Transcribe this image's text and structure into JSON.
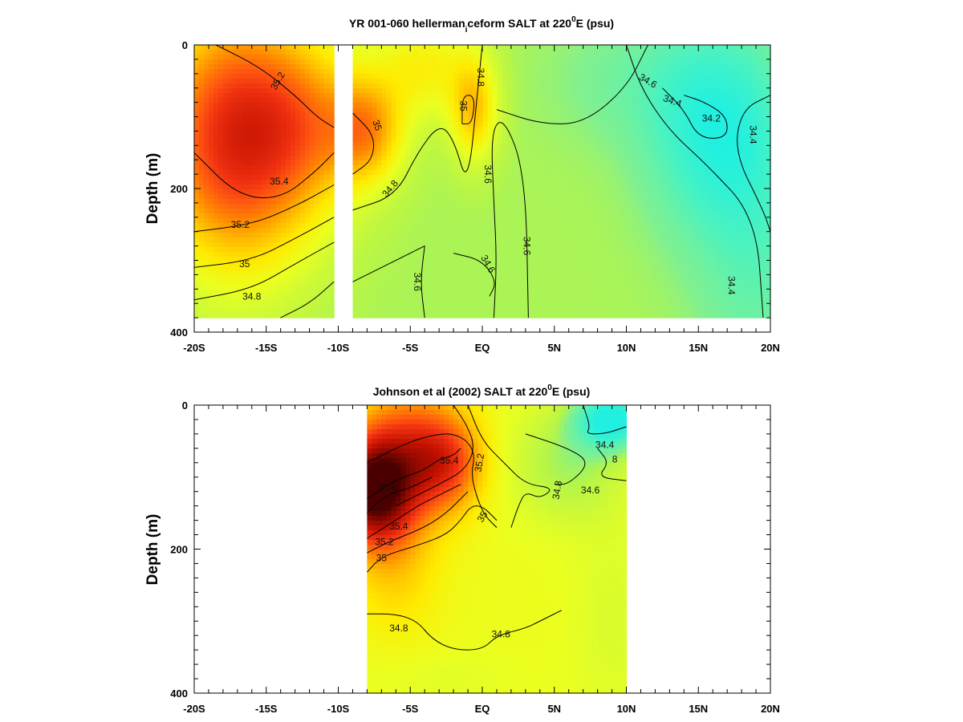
{
  "chart_data": [
    {
      "type": "heatmap",
      "title_main": "YR 001-060 hellerman",
      "title_sub": "i",
      "title_rest": "ceform SALT at 220",
      "title_sup": "0",
      "title_end": "E (psu)",
      "ylabel": "Depth (m)",
      "xlabel": "",
      "xlim": [
        -20,
        20
      ],
      "ylim": [
        400,
        0
      ],
      "x_ticks": [
        -20,
        -15,
        -10,
        -5,
        0,
        5,
        10,
        15,
        20
      ],
      "x_tick_labels": [
        "-20S",
        "-15S",
        "-10S",
        "-5S",
        "EQ",
        "5N",
        "10N",
        "15N",
        "20N"
      ],
      "y_ticks": [
        0,
        200,
        400
      ],
      "y_tick_labels": [
        "0",
        "200",
        "400"
      ],
      "data_x_range": [
        [
          -20,
          -10.3
        ],
        [
          -9.0,
          20
        ]
      ],
      "data_y_max": 380,
      "colorscale": [
        [
          34.1,
          "#21f0e0"
        ],
        [
          34.3,
          "#4af2c0"
        ],
        [
          34.5,
          "#80f090"
        ],
        [
          34.6,
          "#b5f548"
        ],
        [
          34.8,
          "#eaff20"
        ],
        [
          34.95,
          "#ffea00"
        ],
        [
          35.1,
          "#ffbe00"
        ],
        [
          35.25,
          "#ff8a00"
        ],
        [
          35.4,
          "#ff5a10"
        ],
        [
          35.55,
          "#f03010"
        ],
        [
          35.8,
          "#c01000"
        ],
        [
          36.2,
          "#4a0000"
        ]
      ],
      "base_salinity": 34.58,
      "blobs": [
        {
          "x": -17,
          "y": 130,
          "sx": 5.5,
          "sy": 170,
          "amp": 1.05
        },
        {
          "x": -12,
          "y": 110,
          "sx": 4,
          "sy": 110,
          "amp": 0.35
        },
        {
          "x": -8,
          "y": 120,
          "sx": 2.5,
          "sy": 70,
          "amp": 0.55
        },
        {
          "x": -4,
          "y": 30,
          "sx": 3.5,
          "sy": 70,
          "amp": 0.32
        },
        {
          "x": -0.6,
          "y": 90,
          "sx": 1.6,
          "sy": 70,
          "amp": 0.48
        },
        {
          "x": 16,
          "y": 120,
          "sx": 4.5,
          "sy": 140,
          "amp": -0.38
        },
        {
          "x": 19,
          "y": 260,
          "sx": 4,
          "sy": 220,
          "amp": -0.2
        },
        {
          "x": 11,
          "y": 50,
          "sx": 6,
          "sy": 90,
          "amp": -0.12
        }
      ],
      "contour_labels": [
        {
          "x": -14.2,
          "y": 50,
          "text": "35.2",
          "rot": -60
        },
        {
          "x": -14.1,
          "y": 190,
          "text": "35.4",
          "rot": 0
        },
        {
          "x": -16.8,
          "y": 250,
          "text": "35.2",
          "rot": 0
        },
        {
          "x": -16.5,
          "y": 305,
          "text": "35",
          "rot": 0
        },
        {
          "x": -16.0,
          "y": 350,
          "text": "34.8",
          "rot": 0
        },
        {
          "x": -7.3,
          "y": 112,
          "text": "35",
          "rot": 70
        },
        {
          "x": -6.4,
          "y": 200,
          "text": "34.8",
          "rot": -50
        },
        {
          "x": -0.1,
          "y": 45,
          "text": "34.8",
          "rot": 90
        },
        {
          "x": -1.3,
          "y": 85,
          "text": "35",
          "rot": 90
        },
        {
          "x": 0.4,
          "y": 180,
          "text": "34.6",
          "rot": 90
        },
        {
          "x": 3.1,
          "y": 280,
          "text": "34.6",
          "rot": 90
        },
        {
          "x": 0.4,
          "y": 305,
          "text": "34.6",
          "rot": 60
        },
        {
          "x": -4.5,
          "y": 330,
          "text": "34.6",
          "rot": 90
        },
        {
          "x": 11.5,
          "y": 50,
          "text": "34.6",
          "rot": 30
        },
        {
          "x": 13.2,
          "y": 78,
          "text": "34.4",
          "rot": 20
        },
        {
          "x": 15.9,
          "y": 102,
          "text": "34.2",
          "rot": 0
        },
        {
          "x": 18.8,
          "y": 125,
          "text": "34.4",
          "rot": 90
        },
        {
          "x": 17.3,
          "y": 335,
          "text": "34.4",
          "rot": 90
        }
      ],
      "contours": [
        [
          [
            -18.5,
            0
          ],
          [
            -15.5,
            30
          ],
          [
            -13,
            70
          ],
          [
            -11.5,
            100
          ],
          [
            -10.3,
            115
          ]
        ],
        [
          [
            -20,
            150
          ],
          [
            -17,
            210
          ],
          [
            -14,
            215
          ],
          [
            -11.5,
            175
          ],
          [
            -10.3,
            150
          ]
        ],
        [
          [
            -20,
            260
          ],
          [
            -16,
            250
          ],
          [
            -13,
            225
          ],
          [
            -10.3,
            195
          ]
        ],
        [
          [
            -20,
            310
          ],
          [
            -16,
            300
          ],
          [
            -13,
            270
          ],
          [
            -10.3,
            240
          ]
        ],
        [
          [
            -20,
            355
          ],
          [
            -16,
            340
          ],
          [
            -13,
            305
          ],
          [
            -10.3,
            275
          ]
        ],
        [
          [
            -14,
            380
          ],
          [
            -12,
            360
          ],
          [
            -10.3,
            330
          ]
        ],
        [
          [
            -9,
            95
          ],
          [
            -7.5,
            125
          ],
          [
            -7.6,
            160
          ],
          [
            -9,
            180
          ]
        ],
        [
          [
            -9,
            230
          ],
          [
            -6,
            210
          ],
          [
            -4.5,
            150
          ],
          [
            -3,
            110
          ],
          [
            -2,
            130
          ],
          [
            -1,
            200
          ],
          [
            -0.3,
            60
          ],
          [
            0,
            0
          ]
        ],
        [
          [
            -1.4,
            110
          ],
          [
            -0.7,
            110
          ],
          [
            -0.5,
            70
          ],
          [
            -1.4,
            70
          ],
          [
            -1.4,
            110
          ]
        ],
        [
          [
            -9,
            330
          ],
          [
            -6,
            300
          ],
          [
            -4,
            280
          ]
        ],
        [
          [
            -4,
            380
          ],
          [
            -4.3,
            330
          ],
          [
            -4,
            280
          ]
        ],
        [
          [
            -2,
            290
          ],
          [
            0,
            300
          ],
          [
            1,
            330
          ],
          [
            0.5,
            350
          ]
        ],
        [
          [
            0.8,
            380
          ],
          [
            1,
            300
          ],
          [
            0.8,
            220
          ],
          [
            0.6,
            120
          ],
          [
            1.5,
            100
          ],
          [
            3,
            180
          ],
          [
            3.2,
            380
          ]
        ],
        [
          [
            1,
            90
          ],
          [
            4,
            110
          ],
          [
            7,
            110
          ],
          [
            10,
            60
          ],
          [
            11.5,
            0
          ]
        ],
        [
          [
            10,
            0
          ],
          [
            11,
            60
          ],
          [
            13,
            120
          ],
          [
            15.5,
            165
          ],
          [
            19,
            240
          ],
          [
            19.5,
            380
          ]
        ],
        [
          [
            12.5,
            60
          ],
          [
            14,
            90
          ],
          [
            15,
            130
          ],
          [
            17,
            130
          ],
          [
            17,
            100
          ],
          [
            15.5,
            80
          ],
          [
            14,
            70
          ]
        ],
        [
          [
            20,
            70
          ],
          [
            18,
            90
          ],
          [
            17.5,
            150
          ],
          [
            19.5,
            230
          ],
          [
            20,
            260
          ]
        ]
      ]
    },
    {
      "type": "heatmap",
      "title_main": "Johnson et al (2002) SALT at 220",
      "title_sup": "0",
      "title_end": "E (psu)",
      "ylabel": "Depth (m)",
      "xlabel": "",
      "xlim": [
        -20,
        20
      ],
      "ylim": [
        400,
        0
      ],
      "x_ticks": [
        -20,
        -15,
        -10,
        -5,
        0,
        5,
        10,
        15,
        20
      ],
      "x_tick_labels": [
        "-20S",
        "-15S",
        "-10S",
        "-5S",
        "EQ",
        "5N",
        "10N",
        "15N",
        "20N"
      ],
      "y_ticks": [
        0,
        200,
        400
      ],
      "y_tick_labels": [
        "0",
        "200",
        "400"
      ],
      "data_x_range": [
        [
          -8,
          10
        ]
      ],
      "data_y_max": 400,
      "colorscale": [
        [
          34.1,
          "#21f0e0"
        ],
        [
          34.3,
          "#4af2c0"
        ],
        [
          34.5,
          "#80f090"
        ],
        [
          34.6,
          "#b5f548"
        ],
        [
          34.8,
          "#eaff20"
        ],
        [
          34.95,
          "#ffea00"
        ],
        [
          35.1,
          "#ffbe00"
        ],
        [
          35.25,
          "#ff8a00"
        ],
        [
          35.4,
          "#ff5a10"
        ],
        [
          35.55,
          "#f03010"
        ],
        [
          35.8,
          "#c01000"
        ],
        [
          36.2,
          "#4a0000"
        ]
      ],
      "base_salinity": 34.82,
      "blobs": [
        {
          "x": -7.5,
          "y": 120,
          "sx": 2.5,
          "sy": 70,
          "amp": 1.3
        },
        {
          "x": -5,
          "y": 70,
          "sx": 3.5,
          "sy": 90,
          "amp": 0.65
        },
        {
          "x": -2.5,
          "y": 80,
          "sx": 2.5,
          "sy": 60,
          "amp": 0.5
        },
        {
          "x": -6,
          "y": 230,
          "sx": 3,
          "sy": 90,
          "amp": 0.2
        },
        {
          "x": 9,
          "y": 20,
          "sx": 2.5,
          "sy": 40,
          "amp": -0.75
        },
        {
          "x": 6,
          "y": 80,
          "sx": 4,
          "sy": 80,
          "amp": -0.25
        },
        {
          "x": 9,
          "y": 300,
          "sx": 3,
          "sy": 150,
          "amp": -0.08
        },
        {
          "x": -3,
          "y": 380,
          "sx": 6,
          "sy": 40,
          "amp": -0.05
        }
      ],
      "contour_labels": [
        {
          "x": 8.5,
          "y": 55,
          "text": "34.4",
          "rot": 0
        },
        {
          "x": 9.2,
          "y": 75,
          "text": "8",
          "rot": 0
        },
        {
          "x": -2.3,
          "y": 77,
          "text": "35.4",
          "rot": 0
        },
        {
          "x": -0.2,
          "y": 80,
          "text": "35.2",
          "rot": -80
        },
        {
          "x": 5.2,
          "y": 118,
          "text": "34.8",
          "rot": -80
        },
        {
          "x": 7.5,
          "y": 118,
          "text": "34.6",
          "rot": 0
        },
        {
          "x": -6.6,
          "y": 115,
          "text": "35.6",
          "rot": 0
        },
        {
          "x": 0,
          "y": 155,
          "text": "35",
          "rot": -60
        },
        {
          "x": -5.8,
          "y": 168,
          "text": "35.4",
          "rot": 0
        },
        {
          "x": -6.8,
          "y": 190,
          "text": "35.2",
          "rot": 0
        },
        {
          "x": -7,
          "y": 212,
          "text": "35",
          "rot": 0
        },
        {
          "x": -5.8,
          "y": 310,
          "text": "34.8",
          "rot": 0
        },
        {
          "x": 1.3,
          "y": 318,
          "text": "34.8",
          "rot": 0
        }
      ],
      "contours": [
        [
          [
            7,
            0
          ],
          [
            7.5,
            30
          ],
          [
            7.2,
            40
          ],
          [
            8.5,
            40
          ],
          [
            10,
            30
          ]
        ],
        [
          [
            8,
            60
          ],
          [
            8.8,
            80
          ],
          [
            8,
            100
          ],
          [
            10,
            105
          ]
        ],
        [
          [
            3,
            40
          ],
          [
            6,
            60
          ],
          [
            7.5,
            80
          ],
          [
            6,
            110
          ],
          [
            5,
            110
          ]
        ],
        [
          [
            -1,
            0
          ],
          [
            0,
            50
          ],
          [
            1.5,
            80
          ],
          [
            3,
            110
          ],
          [
            5,
            115
          ],
          [
            4,
            130
          ],
          [
            3,
            120
          ],
          [
            2.5,
            140
          ],
          [
            2,
            170
          ]
        ],
        [
          [
            -8,
            80
          ],
          [
            -5,
            50
          ],
          [
            -3,
            40
          ],
          [
            -2,
            40
          ],
          [
            -1,
            50
          ],
          [
            -0.5,
            70
          ],
          [
            -0.8,
            100
          ],
          [
            0,
            150
          ],
          [
            1,
            170
          ]
        ],
        [
          [
            -6,
            140
          ],
          [
            -4,
            120
          ],
          [
            -3,
            110
          ],
          [
            -1.2,
            90
          ],
          [
            -0.5,
            60
          ],
          [
            -1,
            30
          ],
          [
            -2,
            0
          ]
        ],
        [
          [
            -8,
            130
          ],
          [
            -6.5,
            110
          ],
          [
            -5.5,
            100
          ],
          [
            -4,
            90
          ],
          [
            -3,
            75
          ],
          [
            -2,
            70
          ],
          [
            -1.5,
            60
          ]
        ],
        [
          [
            -8,
            150
          ],
          [
            -7,
            130
          ],
          [
            -6,
            120
          ],
          [
            -5,
            115
          ],
          [
            -3.5,
            100
          ]
        ],
        [
          [
            -8,
            185
          ],
          [
            -6,
            160
          ],
          [
            -4.5,
            140
          ],
          [
            -3.5,
            130
          ],
          [
            -2.5,
            120
          ],
          [
            -1.5,
            110
          ]
        ],
        [
          [
            -8,
            205
          ],
          [
            -6.5,
            190
          ],
          [
            -4,
            170
          ],
          [
            -2.5,
            150
          ],
          [
            -1.5,
            130
          ],
          [
            -1,
            120
          ]
        ],
        [
          [
            -8,
            232
          ],
          [
            -7,
            210
          ],
          [
            -4.5,
            195
          ],
          [
            -2.5,
            180
          ],
          [
            -1.5,
            160
          ],
          [
            -0.8,
            140
          ],
          [
            0,
            140
          ],
          [
            1,
            160
          ]
        ],
        [
          [
            -8,
            290
          ],
          [
            -6,
            290
          ],
          [
            -4.5,
            300
          ],
          [
            -3.5,
            325
          ],
          [
            -2,
            340
          ],
          [
            0,
            340
          ],
          [
            1,
            320
          ],
          [
            3,
            310
          ],
          [
            4,
            300
          ],
          [
            5.5,
            285
          ]
        ]
      ]
    }
  ]
}
